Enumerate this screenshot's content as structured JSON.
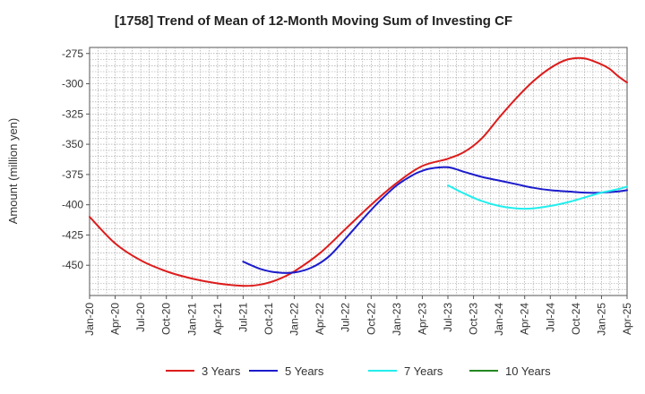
{
  "chart_data": {
    "type": "line",
    "title": "[1758]  Trend of Mean of 12-Month Moving Sum of Investing CF",
    "xlabel": "",
    "ylabel": "Amount (million yen)",
    "ylim": [
      -475,
      -270
    ],
    "yticks": [
      -275,
      -300,
      -325,
      -350,
      -375,
      -400,
      -425,
      -450
    ],
    "x_tick_labels": [
      "Jan-20",
      "Apr-20",
      "Jul-20",
      "Oct-20",
      "Jan-21",
      "Apr-21",
      "Jul-21",
      "Oct-21",
      "Jan-22",
      "Apr-22",
      "Jul-22",
      "Oct-22",
      "Jan-23",
      "Apr-23",
      "Jul-23",
      "Oct-23",
      "Jan-24",
      "Apr-24",
      "Jul-24",
      "Oct-24",
      "Jan-25",
      "Apr-25"
    ],
    "x_range_months": [
      0,
      63
    ],
    "grid": true,
    "legend_position": "bottom",
    "series": [
      {
        "name": "3 Years",
        "color": "#dd1c1c",
        "x": [
          0,
          3,
          6,
          9,
          12,
          15,
          18,
          20,
          22,
          24,
          27,
          30,
          33,
          36,
          39,
          42,
          44,
          46,
          48,
          50,
          52,
          54,
          56,
          58,
          60,
          61,
          62,
          63
        ],
        "values": [
          -410,
          -432,
          -446,
          -455,
          -461,
          -465,
          -467,
          -466,
          -462,
          -455,
          -440,
          -420,
          -400,
          -382,
          -368,
          -362,
          -356,
          -345,
          -328,
          -312,
          -298,
          -287,
          -280,
          -279,
          -284,
          -288,
          -294,
          -299
        ]
      },
      {
        "name": "5 Years",
        "color": "#1c1ccc",
        "x": [
          18,
          20,
          22,
          24,
          26,
          28,
          30,
          32,
          34,
          36,
          38,
          39,
          40,
          42,
          44,
          46,
          48,
          50,
          52,
          54,
          56,
          58,
          60,
          62,
          63
        ],
        "values": [
          -447,
          -453,
          -456,
          -456,
          -452,
          -443,
          -428,
          -412,
          -397,
          -384,
          -375,
          -372,
          -370,
          -369,
          -373,
          -377,
          -380,
          -383,
          -386,
          -388,
          -389,
          -390,
          -390,
          -389,
          -388
        ]
      },
      {
        "name": "7 Years",
        "color": "#22eeee",
        "x": [
          42,
          44,
          46,
          48,
          50,
          52,
          54,
          56,
          58,
          60,
          62,
          63
        ],
        "values": [
          -384,
          -391,
          -397,
          -401,
          -403,
          -403,
          -401,
          -398,
          -394,
          -390,
          -387,
          -385
        ]
      },
      {
        "name": "10 Years",
        "color": "#228822",
        "x": [],
        "values": []
      }
    ]
  }
}
